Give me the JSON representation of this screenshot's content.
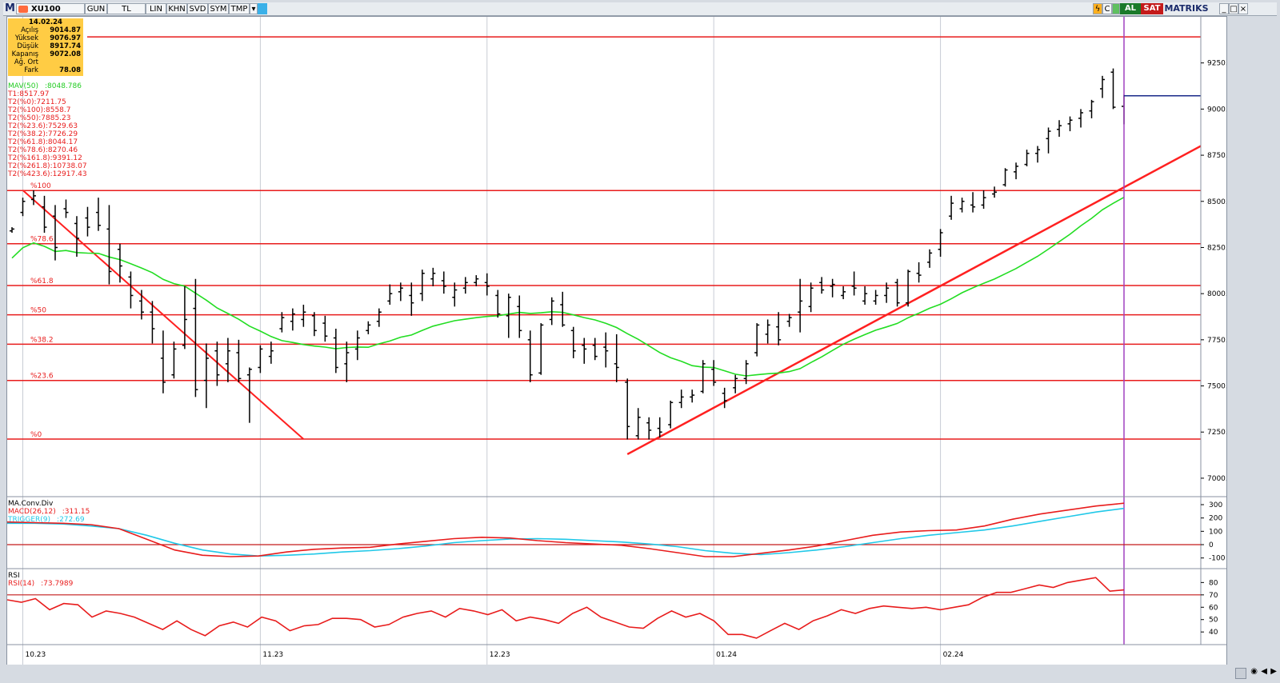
{
  "toolbar": {
    "menu_letter": "M",
    "symbol": "XU100",
    "buttons": [
      "GUN",
      "TL",
      "LIN",
      "KHN",
      "SVD",
      "SYM",
      "TMP"
    ],
    "buy_label": "AL",
    "sell_label": "SAT",
    "brand": "MATRIKS",
    "colors": {
      "buy": "#1a7a2a",
      "sell": "#c41a1a",
      "brand": "#1a2a6a"
    }
  },
  "ohlc_box": {
    "date": "14.02.24",
    "rows": [
      {
        "label": "Açılış",
        "value": "9014.87"
      },
      {
        "label": "Yüksek",
        "value": "9076.97"
      },
      {
        "label": "Düşük",
        "value": "8917.74"
      },
      {
        "label": "Kapanış",
        "value": "9072.08"
      },
      {
        "label": "Ağ. Ort",
        "value": ""
      },
      {
        "label": "Fark",
        "value": "78.08"
      }
    ]
  },
  "indicators": {
    "mav": {
      "label": "MAV(50)",
      "value": ":8048.786",
      "color": "#22cc22"
    },
    "fib": [
      "T1:8517.97",
      "T2(%0):7211.75",
      "T2(%100):8558.7",
      "T2(%50):7885.23",
      "T2(%23.6):7529.63",
      "T2(%38.2):7726.29",
      "T2(%61.8):8044.17",
      "T2(%78.6):8270.46",
      "T2(%161.8):9391.12",
      "T2(%261.8):10738.07",
      "T2(%423.6):12917.43"
    ],
    "fib_color": "#e81c1c",
    "fib_level_labels": [
      "%100",
      "%78.6",
      "%61.8",
      "%50",
      "%38.2",
      "%23.6",
      "%0"
    ]
  },
  "macd_panel": {
    "title": "MA.Conv.Div",
    "macd_label": "MACD(26,12)",
    "macd_value": ":311.15",
    "trigger_label": "TRIGGER(9)",
    "trigger_value": ":272.69",
    "axis_ticks": [
      "300",
      "200",
      "100",
      "0",
      "-100"
    ]
  },
  "rsi_panel": {
    "title": "RSI",
    "rsi_label": "RSI(14)",
    "rsi_value": ":73.7989",
    "axis_ticks": [
      "80",
      "70",
      "60",
      "50",
      "40"
    ]
  },
  "x_axis": {
    "labels": [
      "10.23",
      "11.23",
      "12.23",
      "01.24",
      "02.24"
    ]
  },
  "chart_data": [
    {
      "type": "bar",
      "title": "XU100",
      "ylim": [
        6900,
        9500
      ],
      "y_ticks": [
        7000,
        7250,
        7500,
        7750,
        8000,
        8250,
        8500,
        8750,
        9000,
        9250
      ],
      "fib_levels": [
        {
          "label": "%100",
          "value": 8558.7
        },
        {
          "label": "%78.6",
          "value": 8270.46
        },
        {
          "label": "%61.8",
          "value": 8044.17
        },
        {
          "label": "%50",
          "value": 7885.23
        },
        {
          "label": "%38.2",
          "value": 7726.29
        },
        {
          "label": "%23.6",
          "value": 7529.63
        },
        {
          "label": "%0",
          "value": 7211.75
        }
      ],
      "extra_level": 9391.12,
      "ohlc_bars": [
        [
          8340,
          8360,
          8330,
          8350
        ],
        [
          8440,
          8520,
          8420,
          8500
        ],
        [
          8510,
          8560,
          8480,
          8530
        ],
        [
          8470,
          8530,
          8330,
          8360
        ],
        [
          8420,
          8480,
          8180,
          8250
        ],
        [
          8460,
          8510,
          8410,
          8440
        ],
        [
          8380,
          8420,
          8200,
          8300
        ],
        [
          8410,
          8470,
          8310,
          8360
        ],
        [
          8440,
          8520,
          8340,
          8370
        ],
        [
          8350,
          8480,
          8050,
          8120
        ],
        [
          8240,
          8270,
          8060,
          8150
        ],
        [
          8090,
          8120,
          7920,
          7990
        ],
        [
          7960,
          8020,
          7860,
          7900
        ],
        [
          7900,
          7960,
          7730,
          7810
        ],
        [
          7650,
          7800,
          7460,
          7520
        ],
        [
          7560,
          7740,
          7540,
          7700
        ],
        [
          7720,
          8040,
          7700,
          7860
        ],
        [
          7920,
          8080,
          7440,
          7480
        ],
        [
          7530,
          7730,
          7380,
          7650
        ],
        [
          7690,
          7740,
          7500,
          7560
        ],
        [
          7620,
          7760,
          7520,
          7690
        ],
        [
          7680,
          7750,
          7520,
          7540
        ],
        [
          7560,
          7600,
          7300,
          7590
        ],
        [
          7600,
          7720,
          7570,
          7700
        ],
        [
          7660,
          7740,
          7620,
          7690
        ],
        [
          7810,
          7900,
          7790,
          7870
        ],
        [
          7850,
          7920,
          7800,
          7890
        ],
        [
          7860,
          7940,
          7820,
          7900
        ],
        [
          7880,
          7900,
          7770,
          7800
        ],
        [
          7840,
          7880,
          7740,
          7770
        ],
        [
          7760,
          7810,
          7570,
          7600
        ],
        [
          7620,
          7740,
          7520,
          7680
        ],
        [
          7700,
          7800,
          7640,
          7760
        ],
        [
          7800,
          7850,
          7780,
          7830
        ],
        [
          7850,
          7920,
          7820,
          7900
        ],
        [
          7960,
          8050,
          7940,
          8000
        ],
        [
          8010,
          8060,
          7960,
          8030
        ],
        [
          7990,
          8060,
          7880,
          7950
        ],
        [
          8000,
          8130,
          7960,
          8110
        ],
        [
          8080,
          8140,
          8040,
          8110
        ],
        [
          8070,
          8120,
          8000,
          8040
        ],
        [
          7980,
          8060,
          7930,
          8020
        ],
        [
          8030,
          8090,
          8000,
          8060
        ],
        [
          8060,
          8100,
          8040,
          8080
        ],
        [
          8060,
          8110,
          7990,
          8040
        ],
        [
          7990,
          8020,
          7870,
          7890
        ],
        [
          7880,
          8000,
          7760,
          7980
        ],
        [
          7930,
          7990,
          7760,
          7800
        ],
        [
          7750,
          7800,
          7520,
          7560
        ],
        [
          7570,
          7840,
          7560,
          7830
        ],
        [
          7860,
          7980,
          7830,
          7960
        ],
        [
          7940,
          8010,
          7820,
          7830
        ],
        [
          7800,
          7820,
          7650,
          7690
        ],
        [
          7720,
          7760,
          7620,
          7700
        ],
        [
          7720,
          7760,
          7640,
          7660
        ],
        [
          7710,
          7790,
          7600,
          7690
        ],
        [
          7620,
          7780,
          7520,
          7600
        ],
        [
          7520,
          7540,
          7210,
          7280
        ],
        [
          7230,
          7380,
          7210,
          7330
        ],
        [
          7300,
          7330,
          7210,
          7260
        ],
        [
          7270,
          7330,
          7220,
          7250
        ],
        [
          7290,
          7420,
          7270,
          7410
        ],
        [
          7410,
          7480,
          7380,
          7440
        ],
        [
          7440,
          7480,
          7410,
          7450
        ],
        [
          7470,
          7640,
          7460,
          7620
        ],
        [
          7590,
          7640,
          7500,
          7520
        ],
        [
          7460,
          7490,
          7380,
          7420
        ],
        [
          7490,
          7560,
          7460,
          7540
        ],
        [
          7540,
          7640,
          7510,
          7620
        ],
        [
          7680,
          7840,
          7660,
          7830
        ],
        [
          7780,
          7860,
          7730,
          7830
        ],
        [
          7820,
          7900,
          7720,
          7750
        ],
        [
          7850,
          7890,
          7820,
          7870
        ],
        [
          7900,
          8080,
          7790,
          7960
        ],
        [
          7930,
          8060,
          7900,
          8030
        ],
        [
          8060,
          8090,
          8000,
          8020
        ],
        [
          8040,
          8080,
          7980,
          8050
        ],
        [
          7990,
          8040,
          7970,
          8010
        ],
        [
          8040,
          8120,
          7990,
          8030
        ],
        [
          7960,
          8040,
          7940,
          8000
        ],
        [
          7960,
          8020,
          7940,
          7990
        ],
        [
          7990,
          8060,
          7950,
          8030
        ],
        [
          8060,
          8080,
          7930,
          7950
        ],
        [
          7950,
          8130,
          7930,
          8120
        ],
        [
          8110,
          8170,
          8060,
          8100
        ],
        [
          8170,
          8240,
          8140,
          8220
        ],
        [
          8240,
          8350,
          8200,
          8330
        ],
        [
          8420,
          8530,
          8400,
          8490
        ],
        [
          8460,
          8520,
          8440,
          8500
        ],
        [
          8480,
          8550,
          8440,
          8470
        ],
        [
          8480,
          8560,
          8460,
          8520
        ],
        [
          8540,
          8580,
          8520,
          8550
        ],
        [
          8590,
          8680,
          8580,
          8670
        ],
        [
          8660,
          8710,
          8620,
          8690
        ],
        [
          8700,
          8780,
          8690,
          8760
        ],
        [
          8760,
          8800,
          8710,
          8780
        ],
        [
          8840,
          8900,
          8760,
          8880
        ],
        [
          8890,
          8940,
          8850,
          8910
        ],
        [
          8920,
          8960,
          8880,
          8940
        ],
        [
          8950,
          9000,
          8900,
          8980
        ],
        [
          8990,
          9050,
          8950,
          9040
        ],
        [
          9110,
          9180,
          9060,
          9160
        ],
        [
          9200,
          9220,
          9000,
          9010
        ],
        [
          9014.87,
          9076.97,
          8917.74,
          9072.08
        ]
      ]
    }
  ]
}
